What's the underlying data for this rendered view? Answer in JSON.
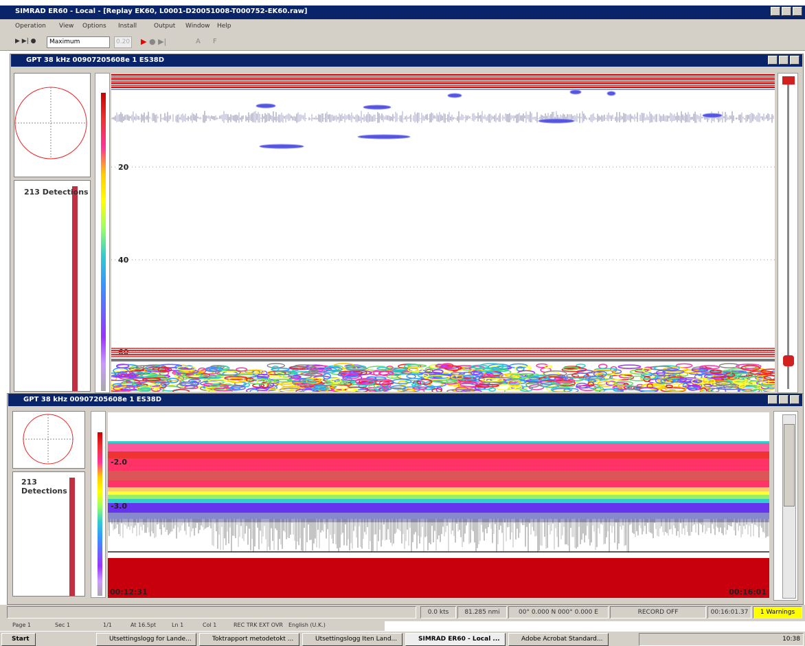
{
  "window_title": "SIMRAD ER60 - Local - [Replay EK60, L0001-D20051008-T000752-EK60.raw]",
  "menu": [
    "Operation",
    "View",
    "Options",
    "Install",
    "Output",
    "Window",
    "Help"
  ],
  "toolbar": {
    "mode": "Maximum",
    "value": "0.20",
    "buttons": [
      "A",
      "F"
    ]
  },
  "echograms": [
    {
      "title": "GPT  38 kHz 00907205608e 1 ES38D",
      "detections": "213 Detections",
      "depth_labels": [
        "20",
        "40",
        "60"
      ]
    },
    {
      "title": "GPT  38 kHz 00907205608e 1 ES38D",
      "detections": "213 Detections",
      "depth_labels": [
        "-2.0",
        "-3.0"
      ],
      "times": [
        "00:12:31",
        "00:16:01"
      ]
    }
  ],
  "status_bar": [
    "0.0 kts",
    "81.285 nmi",
    "00° 0.000 N  000° 0.000 E",
    "RECORD OFF",
    "00:16:01.37",
    "1 Warnings"
  ],
  "word_status": [
    "Page 1",
    "Sec 1",
    "1/1",
    "At 16.5pt",
    "Ln 1",
    "Col 1",
    "REC  TRK  EXT  OVR",
    "English (U.K.)"
  ],
  "taskbar": {
    "start": "Start",
    "items": [
      "Utsettingslogg for Lande...",
      "Toktrapport metodetokt ...",
      "Utsettingslogg Iten Land...",
      "SIMRAD ER60 - Local ...",
      "Adobe Acrobat Standard..."
    ],
    "clock": "10:38"
  }
}
